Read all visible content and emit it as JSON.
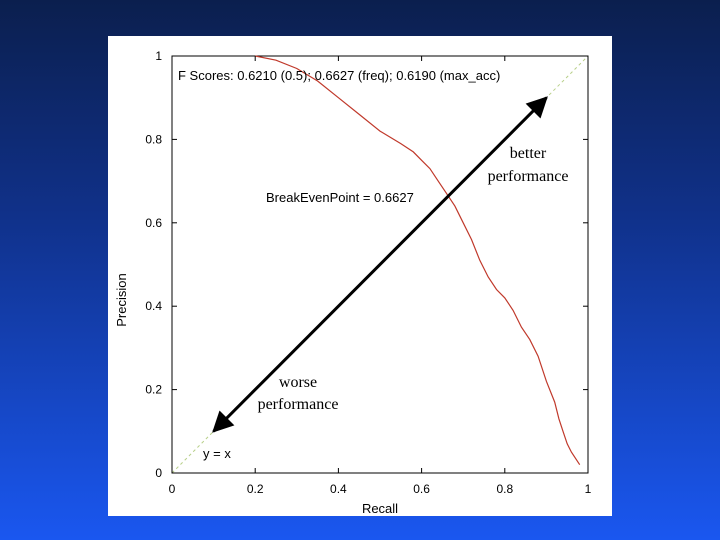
{
  "chart_data": {
    "type": "line",
    "title": "",
    "xlabel": "Recall",
    "ylabel": "Precision",
    "xlim": [
      0,
      1
    ],
    "ylim": [
      0,
      1
    ],
    "xticks": [
      "0",
      "0.2",
      "0.4",
      "0.6",
      "0.8",
      "1"
    ],
    "yticks": [
      "0",
      "0.2",
      "0.4",
      "0.6",
      "0.8",
      "1"
    ],
    "grid": false,
    "series": [
      {
        "x": [
          0.2,
          0.25,
          0.3,
          0.35,
          0.4,
          0.45,
          0.5,
          0.55,
          0.58,
          0.6,
          0.62,
          0.64,
          0.66,
          0.68,
          0.7,
          0.72,
          0.74,
          0.76,
          0.78,
          0.8,
          0.82,
          0.84,
          0.86,
          0.88,
          0.9,
          0.92,
          0.93,
          0.94,
          0.95,
          0.96,
          0.98
        ],
        "y": [
          1.0,
          0.99,
          0.97,
          0.94,
          0.9,
          0.86,
          0.82,
          0.79,
          0.77,
          0.75,
          0.73,
          0.7,
          0.67,
          0.64,
          0.6,
          0.56,
          0.51,
          0.47,
          0.44,
          0.42,
          0.39,
          0.35,
          0.32,
          0.28,
          0.22,
          0.17,
          0.13,
          0.1,
          0.07,
          0.05,
          0.02
        ]
      },
      {
        "name": "y = x",
        "x": [
          0,
          1
        ],
        "y": [
          0,
          1
        ]
      }
    ],
    "annotations": {
      "fscores": "F Scores: 0.6210 (0.5); 0.6627 (freq); 0.6190 (max_acc)",
      "break_even": "BreakEvenPoint = 0.6627",
      "diag_label": "y = x",
      "better_line1": "better",
      "better_line2": "performance",
      "worse_line1": "worse",
      "worse_line2": "performance"
    },
    "arrow": {
      "from": [
        0.1,
        0.1
      ],
      "to": [
        0.9,
        0.9
      ]
    },
    "colors": {
      "curve": "#c0392b",
      "diagonal": "#b8d08a",
      "arrow": "#000000"
    }
  }
}
